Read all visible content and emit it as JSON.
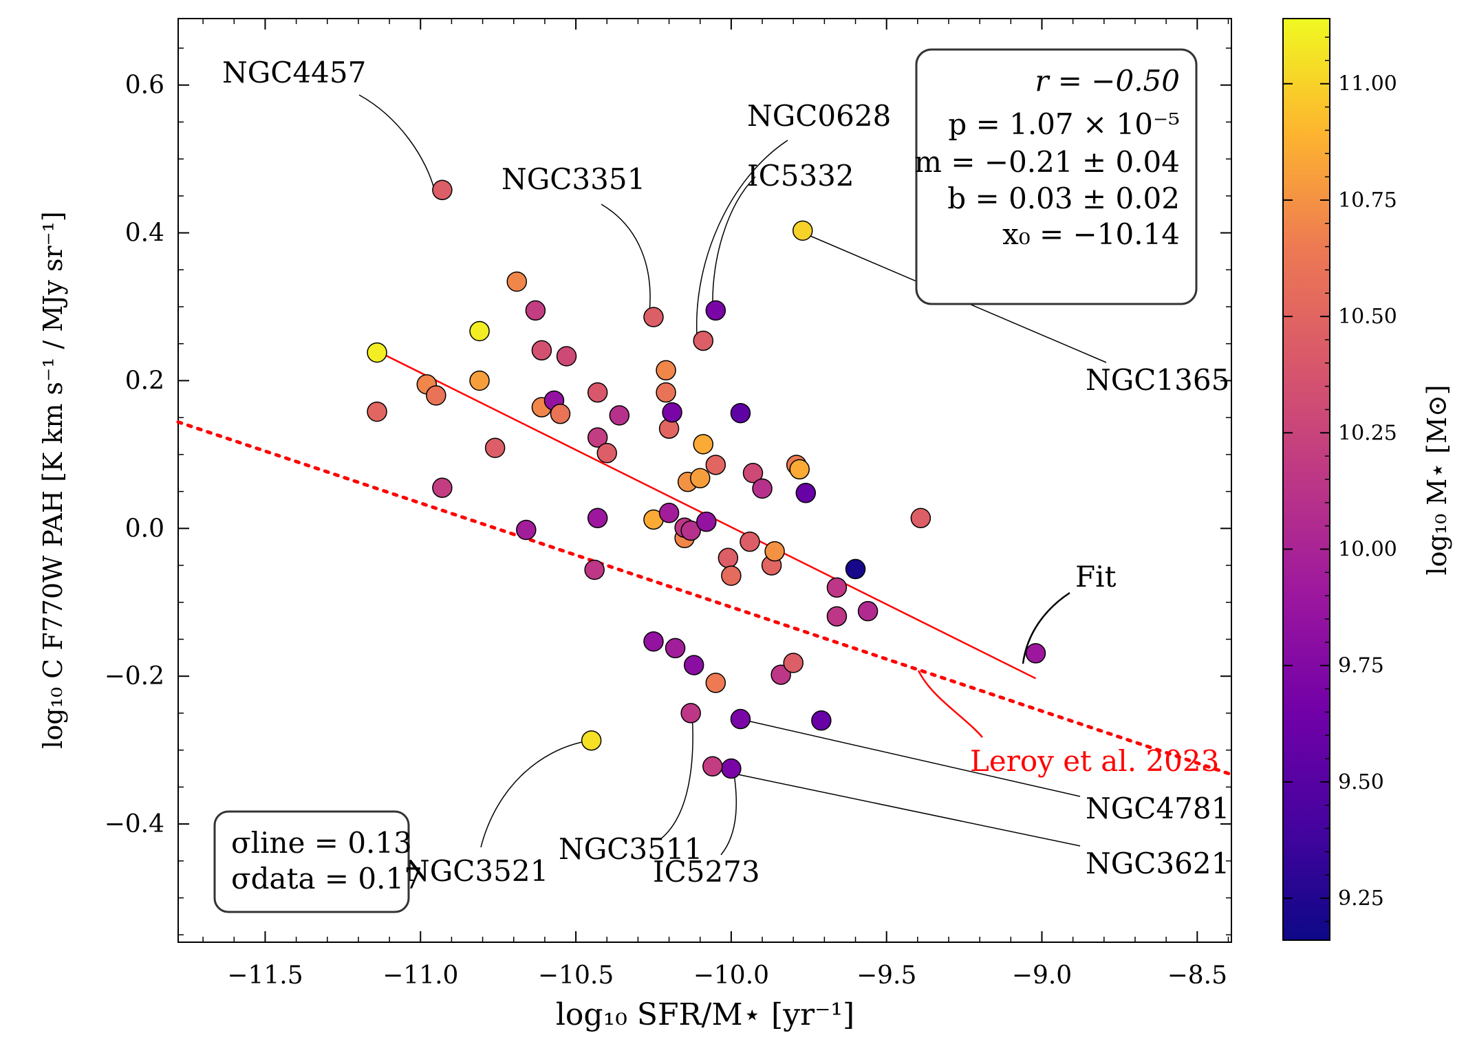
{
  "chart_data": {
    "type": "scatter",
    "xlabel": "log₁₀ SFR/M⋆ [yr⁻¹]",
    "ylabel": "log₁₀ C F770W PAH [K km s⁻¹ / MJy sr⁻¹]",
    "xlim": [
      -11.78,
      -8.39
    ],
    "ylim": [
      -0.56,
      0.69
    ],
    "xticks": [
      -11.5,
      -11.0,
      -10.5,
      -10.0,
      -9.5,
      -9.0,
      -8.5
    ],
    "xtick_labels": [
      "−11.5",
      "−11.0",
      "−10.5",
      "−10.0",
      "−9.5",
      "−9.0",
      "−8.5"
    ],
    "yticks": [
      0.6,
      0.4,
      0.2,
      0.0,
      -0.2,
      -0.4
    ],
    "ytick_labels": [
      "0.6",
      "0.4",
      "0.2",
      "0.0",
      "−0.2",
      "−0.4"
    ],
    "colorbar": {
      "label": "log₁₀ M⋆ [M⊙]",
      "range": [
        9.16,
        11.14
      ],
      "ticks": [
        9.25,
        9.5,
        9.75,
        10.0,
        10.25,
        10.5,
        10.75,
        11.0
      ],
      "tick_labels": [
        "9.25",
        "9.50",
        "9.75",
        "10.00",
        "10.25",
        "10.50",
        "10.75",
        "11.00"
      ],
      "colormap": "plasma"
    },
    "points": [
      {
        "x": -10.93,
        "y": 0.458,
        "c": 10.45,
        "name": "NGC4457"
      },
      {
        "x": -10.25,
        "y": 0.286,
        "c": 10.45,
        "name": "NGC3351"
      },
      {
        "x": -10.05,
        "y": 0.295,
        "c": 9.7,
        "name": "IC5332"
      },
      {
        "x": -10.09,
        "y": 0.254,
        "c": 10.45,
        "name": "NGC0628"
      },
      {
        "x": -9.77,
        "y": 0.403,
        "c": 11.0,
        "name": "NGC1365"
      },
      {
        "x": -10.45,
        "y": -0.287,
        "c": 11.05,
        "name": "NGC3521"
      },
      {
        "x": -10.13,
        "y": -0.25,
        "c": 10.15,
        "name": "NGC3511"
      },
      {
        "x": -10.0,
        "y": -0.325,
        "c": 9.7,
        "name": "IC5273"
      },
      {
        "x": -9.97,
        "y": -0.258,
        "c": 9.7,
        "name": "NGC4781"
      },
      {
        "x": -10.06,
        "y": -0.322,
        "c": 10.2,
        "name": "NGC3621"
      },
      {
        "x": -11.14,
        "y": 0.238,
        "c": 11.1
      },
      {
        "x": -11.14,
        "y": 0.158,
        "c": 10.5
      },
      {
        "x": -10.98,
        "y": 0.195,
        "c": 10.7
      },
      {
        "x": -10.95,
        "y": 0.18,
        "c": 10.6
      },
      {
        "x": -10.93,
        "y": 0.055,
        "c": 10.2
      },
      {
        "x": -10.81,
        "y": 0.267,
        "c": 11.1
      },
      {
        "x": -10.81,
        "y": 0.2,
        "c": 10.8
      },
      {
        "x": -10.76,
        "y": 0.109,
        "c": 10.45
      },
      {
        "x": -10.69,
        "y": 0.334,
        "c": 10.7
      },
      {
        "x": -10.66,
        "y": -0.002,
        "c": 9.95
      },
      {
        "x": -10.63,
        "y": 0.295,
        "c": 10.2
      },
      {
        "x": -10.61,
        "y": 0.241,
        "c": 10.35
      },
      {
        "x": -10.61,
        "y": 0.164,
        "c": 10.7
      },
      {
        "x": -10.57,
        "y": 0.173,
        "c": 9.85
      },
      {
        "x": -10.55,
        "y": 0.155,
        "c": 10.6
      },
      {
        "x": -10.53,
        "y": 0.233,
        "c": 10.3
      },
      {
        "x": -10.43,
        "y": 0.184,
        "c": 10.4
      },
      {
        "x": -10.43,
        "y": 0.123,
        "c": 10.2
      },
      {
        "x": -10.43,
        "y": 0.014,
        "c": 9.9
      },
      {
        "x": -10.44,
        "y": -0.056,
        "c": 10.15
      },
      {
        "x": -10.4,
        "y": 0.102,
        "c": 10.45
      },
      {
        "x": -10.36,
        "y": 0.153,
        "c": 10.1
      },
      {
        "x": -10.25,
        "y": 0.012,
        "c": 10.85
      },
      {
        "x": -10.25,
        "y": -0.153,
        "c": 9.85
      },
      {
        "x": -10.21,
        "y": 0.214,
        "c": 10.7
      },
      {
        "x": -10.21,
        "y": 0.184,
        "c": 10.6
      },
      {
        "x": -10.2,
        "y": 0.135,
        "c": 10.5
      },
      {
        "x": -10.19,
        "y": 0.157,
        "c": 9.7
      },
      {
        "x": -10.2,
        "y": 0.021,
        "c": 9.95
      },
      {
        "x": -10.18,
        "y": -0.162,
        "c": 9.95
      },
      {
        "x": -10.15,
        "y": -0.013,
        "c": 10.7
      },
      {
        "x": -10.15,
        "y": 0.001,
        "c": 10.15
      },
      {
        "x": -10.13,
        "y": -0.003,
        "c": 10.1
      },
      {
        "x": -10.14,
        "y": 0.063,
        "c": 10.75
      },
      {
        "x": -10.12,
        "y": -0.185,
        "c": 9.8
      },
      {
        "x": -10.1,
        "y": 0.068,
        "c": 10.8
      },
      {
        "x": -10.09,
        "y": 0.114,
        "c": 10.85
      },
      {
        "x": -10.08,
        "y": 0.009,
        "c": 9.85
      },
      {
        "x": -10.05,
        "y": 0.086,
        "c": 10.5
      },
      {
        "x": -10.05,
        "y": -0.209,
        "c": 10.65
      },
      {
        "x": -10.01,
        "y": -0.04,
        "c": 10.45
      },
      {
        "x": -10.0,
        "y": -0.064,
        "c": 10.55
      },
      {
        "x": -9.97,
        "y": 0.156,
        "c": 9.55
      },
      {
        "x": -9.94,
        "y": -0.018,
        "c": 10.45
      },
      {
        "x": -9.93,
        "y": 0.075,
        "c": 10.3
      },
      {
        "x": -9.9,
        "y": 0.054,
        "c": 10.1
      },
      {
        "x": -9.87,
        "y": -0.05,
        "c": 10.5
      },
      {
        "x": -9.86,
        "y": -0.031,
        "c": 10.75
      },
      {
        "x": -9.84,
        "y": -0.198,
        "c": 10.15
      },
      {
        "x": -9.8,
        "y": -0.182,
        "c": 10.45
      },
      {
        "x": -9.79,
        "y": 0.086,
        "c": 10.65
      },
      {
        "x": -9.78,
        "y": 0.08,
        "c": 10.85
      },
      {
        "x": -9.76,
        "y": 0.048,
        "c": 9.6
      },
      {
        "x": -9.71,
        "y": -0.26,
        "c": 9.6
      },
      {
        "x": -9.66,
        "y": -0.08,
        "c": 10.15
      },
      {
        "x": -9.66,
        "y": -0.119,
        "c": 10.15
      },
      {
        "x": -9.6,
        "y": -0.055,
        "c": 9.2
      },
      {
        "x": -9.56,
        "y": -0.112,
        "c": 10.05
      },
      {
        "x": -9.39,
        "y": 0.014,
        "c": 10.45
      },
      {
        "x": -9.02,
        "y": -0.169,
        "c": 9.9
      }
    ],
    "fit_line": {
      "x": [
        -11.14,
        -9.02
      ],
      "y": [
        0.24,
        -0.203
      ],
      "color": "#ff0000",
      "label": "Fit"
    },
    "reference_line": {
      "x": [
        -11.78,
        -8.39
      ],
      "y": [
        0.144,
        -0.333
      ],
      "color": "#ff0000",
      "style": "dotted",
      "label": "Leroy et al. 2023"
    },
    "stats_box": {
      "r": "r = −0.50",
      "p": "p = 1.07 × 10⁻⁵",
      "m": "m = −0.21 ± 0.04",
      "b": "b = 0.03 ± 0.02",
      "x0": "x₀ = −10.14"
    },
    "sigma_box": {
      "line": "σline = 0.13",
      "data": "σdata = 0.17"
    }
  }
}
